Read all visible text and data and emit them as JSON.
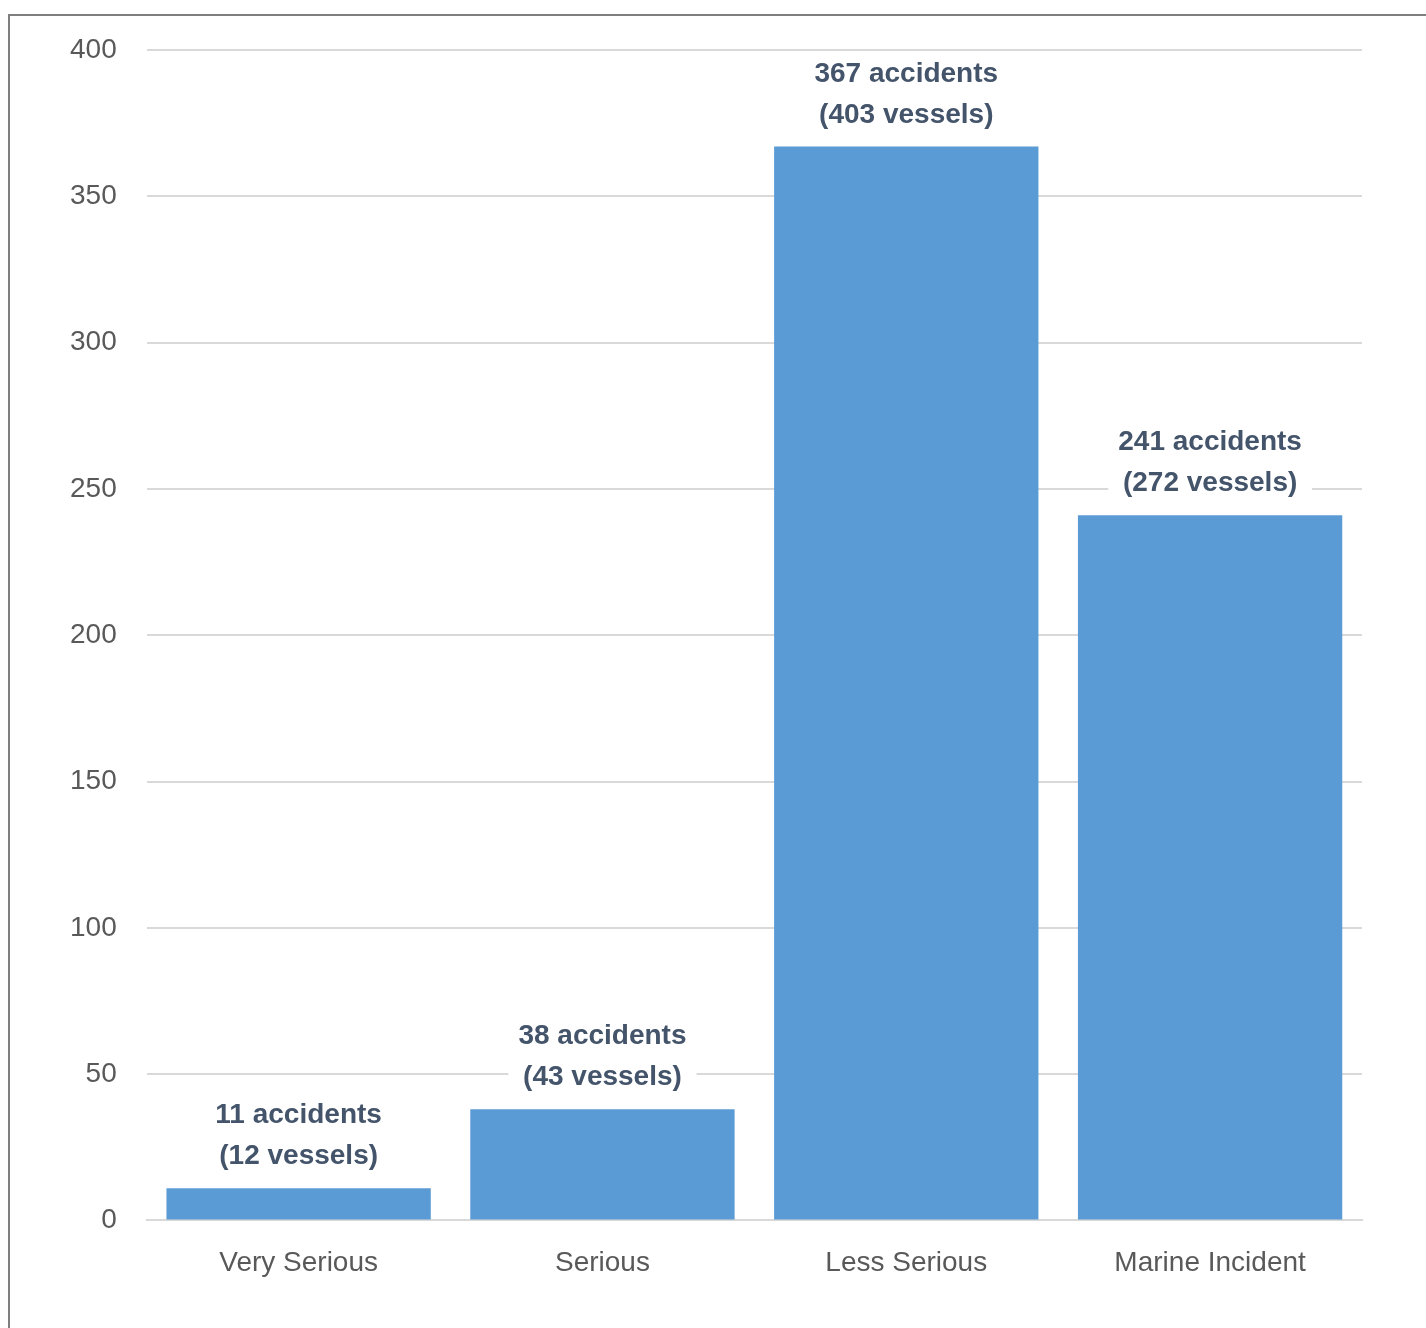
{
  "chart_data": {
    "type": "bar",
    "categories": [
      "Very Serious",
      "Serious",
      "Less Serious",
      "Marine Incident"
    ],
    "values": [
      11,
      38,
      367,
      241
    ],
    "color": "#5b9bd5",
    "value_labels": [
      "11 accidents\n(12 vessels)",
      "38 accidents\n(43 vessels)",
      "367 accidents\n(403 vessels)",
      "241 accidents\n(272 vessels)"
    ],
    "ylim": [
      0,
      400
    ],
    "yticks": [
      0,
      50,
      100,
      150,
      200,
      250,
      300,
      350,
      400
    ],
    "grid": "y",
    "legend": false
  }
}
